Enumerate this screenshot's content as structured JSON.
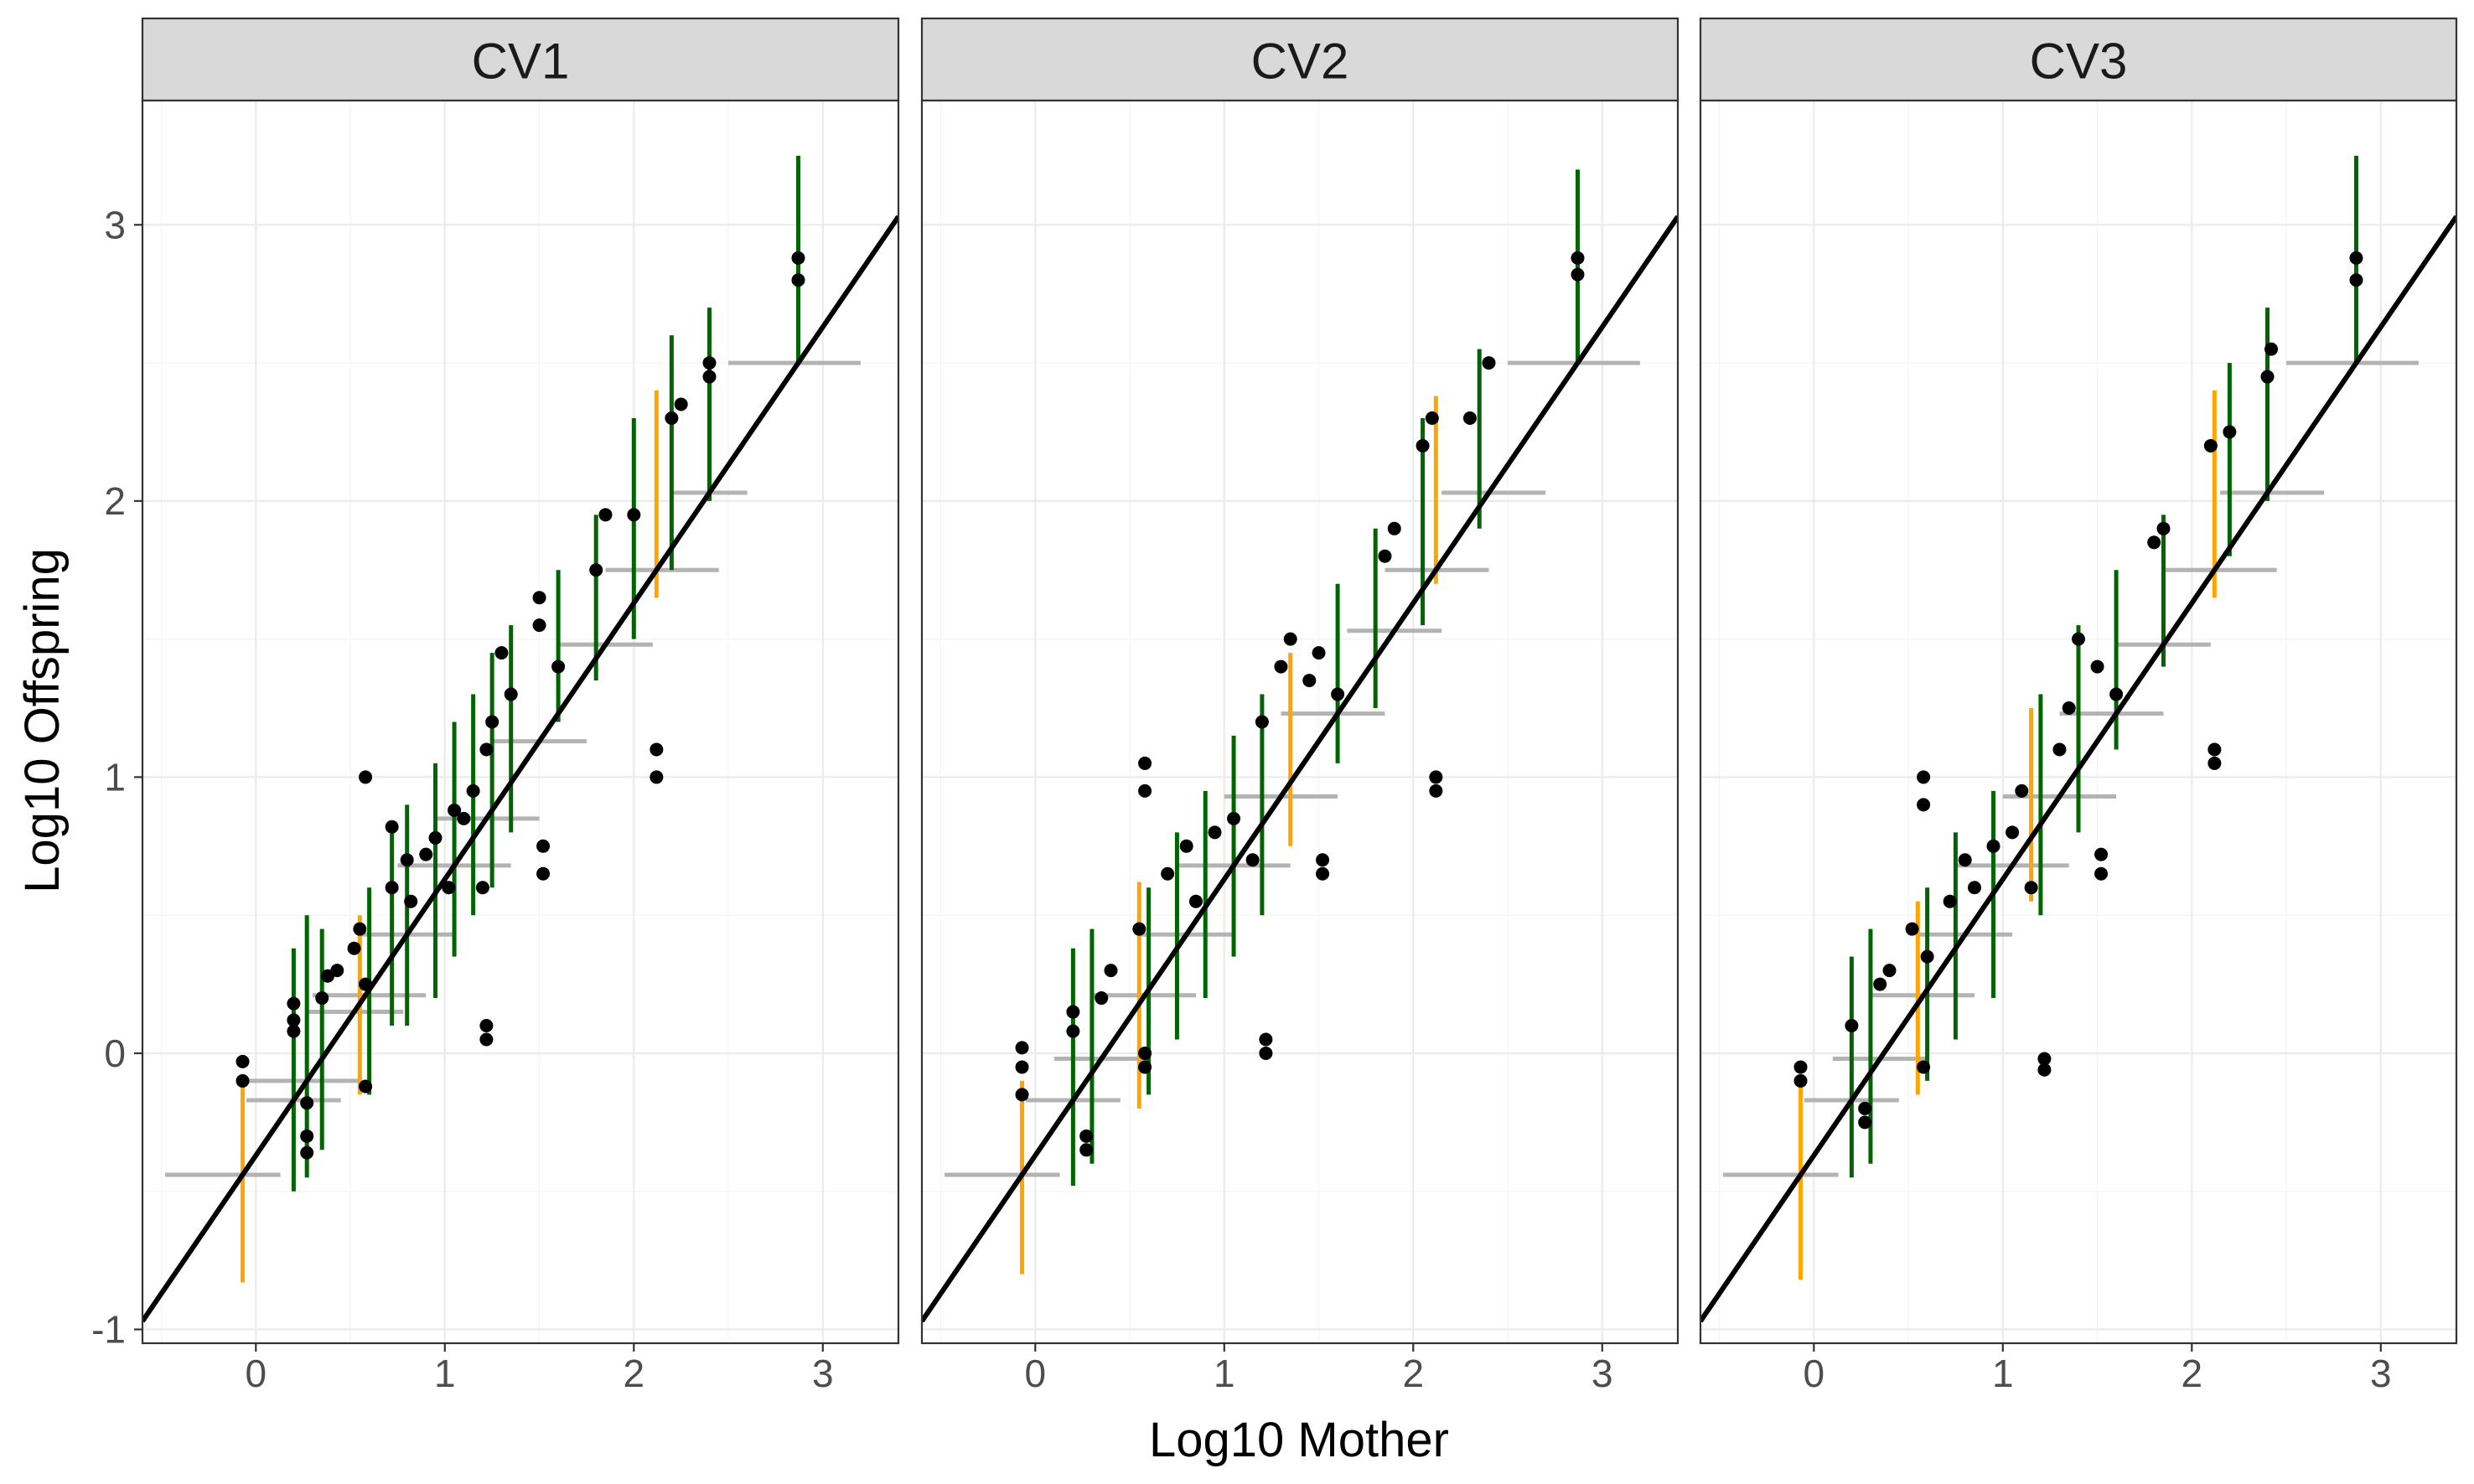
{
  "chart_data": {
    "type": "scatter",
    "xlabel": "Log10 Mother",
    "ylabel": "Log10 Offspring",
    "xlim": [
      -0.6,
      3.4
    ],
    "ylim": [
      -1.05,
      3.45
    ],
    "x_ticks": [
      "0",
      "1",
      "2",
      "3"
    ],
    "y_ticks": [
      "-1",
      "0",
      "1",
      "2",
      "3"
    ],
    "grid": true,
    "legend": "none",
    "colors": {
      "points": "#000000",
      "x_error_bars": "#b3b3b3",
      "y_error_bars_in_interval": "#006400",
      "y_error_bars_outside_interval": "#ffa500",
      "fit_line": "#000000",
      "strip_background": "#d9d9d9"
    },
    "fit_line": {
      "slope": 1.0,
      "intercept": -0.37
    },
    "panels": [
      {
        "label": "CV1",
        "points": [
          [
            -0.07,
            -0.1
          ],
          [
            -0.07,
            -0.03
          ],
          [
            0.2,
            0.08
          ],
          [
            0.2,
            0.12
          ],
          [
            0.2,
            0.18
          ],
          [
            0.27,
            -0.3
          ],
          [
            0.27,
            -0.36
          ],
          [
            0.27,
            -0.18
          ],
          [
            0.35,
            0.2
          ],
          [
            0.38,
            0.28
          ],
          [
            0.43,
            0.3
          ],
          [
            0.52,
            0.38
          ],
          [
            0.55,
            0.45
          ],
          [
            0.58,
            0.25
          ],
          [
            0.58,
            -0.12
          ],
          [
            0.58,
            1.0
          ],
          [
            0.72,
            0.82
          ],
          [
            0.72,
            0.6
          ],
          [
            0.8,
            0.7
          ],
          [
            0.82,
            0.55
          ],
          [
            0.9,
            0.72
          ],
          [
            0.95,
            0.78
          ],
          [
            1.02,
            0.6
          ],
          [
            1.05,
            0.88
          ],
          [
            1.1,
            0.85
          ],
          [
            1.15,
            0.95
          ],
          [
            1.2,
            0.6
          ],
          [
            1.22,
            1.1
          ],
          [
            1.25,
            1.2
          ],
          [
            1.22,
            0.1
          ],
          [
            1.22,
            0.05
          ],
          [
            1.3,
            1.45
          ],
          [
            1.35,
            1.3
          ],
          [
            1.5,
            1.55
          ],
          [
            1.5,
            1.65
          ],
          [
            1.52,
            0.75
          ],
          [
            1.52,
            0.65
          ],
          [
            1.6,
            1.4
          ],
          [
            1.8,
            1.75
          ],
          [
            1.85,
            1.95
          ],
          [
            2.0,
            1.95
          ],
          [
            2.12,
            1.0
          ],
          [
            2.12,
            1.1
          ],
          [
            2.2,
            2.3
          ],
          [
            2.25,
            2.35
          ],
          [
            2.4,
            2.45
          ],
          [
            2.4,
            2.5
          ],
          [
            2.87,
            2.88
          ],
          [
            2.87,
            2.8
          ]
        ],
        "x_errors": [
          [
            -0.07,
            -0.48,
            0.13
          ],
          [
            0.2,
            -0.05,
            0.45
          ],
          [
            0.27,
            -0.05,
            0.55
          ],
          [
            0.52,
            0.28,
            0.78
          ],
          [
            0.58,
            0.3,
            0.9
          ],
          [
            0.8,
            0.55,
            1.05
          ],
          [
            1.05,
            0.75,
            1.35
          ],
          [
            1.22,
            0.95,
            1.5
          ],
          [
            1.5,
            1.25,
            1.75
          ],
          [
            1.85,
            1.6,
            2.1
          ],
          [
            2.12,
            1.85,
            2.45
          ],
          [
            2.4,
            2.2,
            2.6
          ],
          [
            2.87,
            2.5,
            3.2
          ]
        ],
        "y_errors": [
          [
            -0.07,
            -0.83,
            -0.1,
            "orange"
          ],
          [
            0.2,
            -0.5,
            0.38,
            "green"
          ],
          [
            0.27,
            -0.45,
            0.5,
            "green"
          ],
          [
            0.35,
            -0.35,
            0.45,
            "green"
          ],
          [
            0.55,
            -0.15,
            0.5,
            "orange"
          ],
          [
            0.6,
            -0.15,
            0.6,
            "green"
          ],
          [
            0.72,
            0.1,
            0.8,
            "green"
          ],
          [
            0.8,
            0.1,
            0.9,
            "green"
          ],
          [
            0.95,
            0.2,
            1.05,
            "green"
          ],
          [
            1.05,
            0.35,
            1.2,
            "green"
          ],
          [
            1.15,
            0.5,
            1.3,
            "green"
          ],
          [
            1.25,
            0.6,
            1.45,
            "green"
          ],
          [
            1.35,
            0.8,
            1.55,
            "green"
          ],
          [
            1.6,
            1.2,
            1.75,
            "green"
          ],
          [
            1.8,
            1.35,
            1.95,
            "green"
          ],
          [
            2.0,
            1.5,
            2.3,
            "green"
          ],
          [
            2.12,
            1.65,
            2.4,
            "orange"
          ],
          [
            2.2,
            1.75,
            2.6,
            "green"
          ],
          [
            2.4,
            2.0,
            2.7,
            "green"
          ],
          [
            2.87,
            2.5,
            3.25,
            "green"
          ]
        ]
      },
      {
        "label": "CV2",
        "points": [
          [
            -0.07,
            -0.15
          ],
          [
            -0.07,
            -0.05
          ],
          [
            -0.07,
            0.02
          ],
          [
            0.2,
            0.08
          ],
          [
            0.2,
            0.15
          ],
          [
            0.27,
            -0.3
          ],
          [
            0.27,
            -0.35
          ],
          [
            0.35,
            0.2
          ],
          [
            0.4,
            0.3
          ],
          [
            0.55,
            0.45
          ],
          [
            0.58,
            1.05
          ],
          [
            0.58,
            0.95
          ],
          [
            0.58,
            0.0
          ],
          [
            0.58,
            -0.05
          ],
          [
            0.7,
            0.65
          ],
          [
            0.8,
            0.75
          ],
          [
            0.85,
            0.55
          ],
          [
            0.95,
            0.8
          ],
          [
            1.05,
            0.85
          ],
          [
            1.15,
            0.7
          ],
          [
            1.2,
            1.2
          ],
          [
            1.22,
            0.05
          ],
          [
            1.22,
            0.0
          ],
          [
            1.3,
            1.4
          ],
          [
            1.35,
            1.5
          ],
          [
            1.45,
            1.35
          ],
          [
            1.5,
            1.45
          ],
          [
            1.52,
            0.7
          ],
          [
            1.52,
            0.65
          ],
          [
            1.6,
            1.3
          ],
          [
            1.85,
            1.8
          ],
          [
            1.9,
            1.9
          ],
          [
            2.05,
            2.2
          ],
          [
            2.1,
            2.3
          ],
          [
            2.12,
            1.0
          ],
          [
            2.12,
            0.95
          ],
          [
            2.3,
            2.3
          ],
          [
            2.4,
            2.5
          ],
          [
            2.87,
            2.88
          ],
          [
            2.87,
            2.82
          ]
        ],
        "x_errors": [
          [
            -0.07,
            -0.48,
            0.13
          ],
          [
            0.2,
            -0.05,
            0.45
          ],
          [
            0.35,
            0.1,
            0.6
          ],
          [
            0.58,
            0.3,
            0.85
          ],
          [
            0.8,
            0.55,
            1.05
          ],
          [
            1.05,
            0.75,
            1.35
          ],
          [
            1.3,
            1.0,
            1.6
          ],
          [
            1.6,
            1.3,
            1.85
          ],
          [
            1.9,
            1.65,
            2.15
          ],
          [
            2.12,
            1.85,
            2.4
          ],
          [
            2.4,
            2.15,
            2.7
          ],
          [
            2.87,
            2.5,
            3.2
          ]
        ],
        "y_errors": [
          [
            -0.07,
            -0.8,
            -0.1,
            "orange"
          ],
          [
            0.2,
            -0.48,
            0.38,
            "green"
          ],
          [
            0.3,
            -0.4,
            0.45,
            "green"
          ],
          [
            0.55,
            -0.2,
            0.62,
            "orange"
          ],
          [
            0.6,
            -0.15,
            0.6,
            "green"
          ],
          [
            0.75,
            0.05,
            0.8,
            "green"
          ],
          [
            0.9,
            0.2,
            0.95,
            "green"
          ],
          [
            1.05,
            0.35,
            1.15,
            "green"
          ],
          [
            1.2,
            0.5,
            1.3,
            "green"
          ],
          [
            1.35,
            0.75,
            1.45,
            "orange"
          ],
          [
            1.6,
            1.05,
            1.7,
            "green"
          ],
          [
            1.8,
            1.25,
            1.9,
            "green"
          ],
          [
            2.05,
            1.55,
            2.3,
            "green"
          ],
          [
            2.12,
            1.7,
            2.38,
            "orange"
          ],
          [
            2.35,
            1.9,
            2.55,
            "green"
          ],
          [
            2.87,
            2.5,
            3.2,
            "green"
          ]
        ]
      },
      {
        "label": "CV3",
        "points": [
          [
            -0.07,
            -0.1
          ],
          [
            -0.07,
            -0.05
          ],
          [
            0.2,
            0.1
          ],
          [
            0.27,
            -0.2
          ],
          [
            0.27,
            -0.25
          ],
          [
            0.35,
            0.25
          ],
          [
            0.4,
            0.3
          ],
          [
            0.52,
            0.45
          ],
          [
            0.58,
            1.0
          ],
          [
            0.58,
            0.9
          ],
          [
            0.58,
            -0.05
          ],
          [
            0.6,
            0.35
          ],
          [
            0.72,
            0.55
          ],
          [
            0.8,
            0.7
          ],
          [
            0.85,
            0.6
          ],
          [
            0.95,
            0.75
          ],
          [
            1.05,
            0.8
          ],
          [
            1.1,
            0.95
          ],
          [
            1.15,
            0.6
          ],
          [
            1.22,
            -0.02
          ],
          [
            1.22,
            -0.06
          ],
          [
            1.3,
            1.1
          ],
          [
            1.35,
            1.25
          ],
          [
            1.4,
            1.5
          ],
          [
            1.5,
            1.4
          ],
          [
            1.52,
            0.72
          ],
          [
            1.52,
            0.65
          ],
          [
            1.6,
            1.3
          ],
          [
            1.8,
            1.85
          ],
          [
            1.85,
            1.9
          ],
          [
            2.1,
            2.2
          ],
          [
            2.12,
            1.1
          ],
          [
            2.12,
            1.05
          ],
          [
            2.2,
            2.25
          ],
          [
            2.4,
            2.45
          ],
          [
            2.42,
            2.55
          ],
          [
            2.87,
            2.88
          ],
          [
            2.87,
            2.8
          ]
        ],
        "x_errors": [
          [
            -0.07,
            -0.48,
            0.13
          ],
          [
            0.2,
            -0.05,
            0.45
          ],
          [
            0.35,
            0.1,
            0.6
          ],
          [
            0.58,
            0.3,
            0.85
          ],
          [
            0.8,
            0.55,
            1.05
          ],
          [
            1.05,
            0.75,
            1.35
          ],
          [
            1.3,
            1.0,
            1.6
          ],
          [
            1.6,
            1.3,
            1.85
          ],
          [
            1.85,
            1.6,
            2.1
          ],
          [
            2.12,
            1.85,
            2.45
          ],
          [
            2.4,
            2.15,
            2.7
          ],
          [
            2.87,
            2.5,
            3.2
          ]
        ],
        "y_errors": [
          [
            -0.07,
            -0.82,
            -0.1,
            "orange"
          ],
          [
            0.2,
            -0.45,
            0.35,
            "green"
          ],
          [
            0.3,
            -0.4,
            0.45,
            "green"
          ],
          [
            0.55,
            -0.15,
            0.55,
            "orange"
          ],
          [
            0.6,
            -0.1,
            0.6,
            "green"
          ],
          [
            0.75,
            0.05,
            0.8,
            "green"
          ],
          [
            0.95,
            0.2,
            0.95,
            "green"
          ],
          [
            1.15,
            0.55,
            1.25,
            "orange"
          ],
          [
            1.2,
            0.5,
            1.3,
            "green"
          ],
          [
            1.4,
            0.8,
            1.55,
            "green"
          ],
          [
            1.6,
            1.1,
            1.75,
            "green"
          ],
          [
            1.85,
            1.4,
            1.95,
            "green"
          ],
          [
            2.12,
            1.65,
            2.4,
            "orange"
          ],
          [
            2.2,
            1.8,
            2.5,
            "green"
          ],
          [
            2.4,
            2.0,
            2.7,
            "green"
          ],
          [
            2.87,
            2.5,
            3.25,
            "green"
          ]
        ]
      }
    ]
  }
}
